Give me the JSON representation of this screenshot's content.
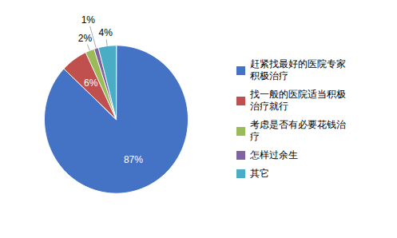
{
  "chart_data": {
    "type": "pie",
    "categories": [
      "赶紧找最好的医院专家\n积极治疗",
      "找一般的医院适当积极\n治疗就行",
      "考虑是否有必要花钱治\n疗",
      "怎样过余生",
      "其它"
    ],
    "values": [
      87,
      6,
      2,
      1,
      4
    ],
    "value_labels": [
      "87%",
      "6%",
      "2%",
      "1%",
      "4%"
    ],
    "colors": [
      "#4472C4",
      "#C0504D",
      "#9BBB59",
      "#8064A2",
      "#4BACC6"
    ],
    "data_labels": true,
    "legend": "right"
  }
}
